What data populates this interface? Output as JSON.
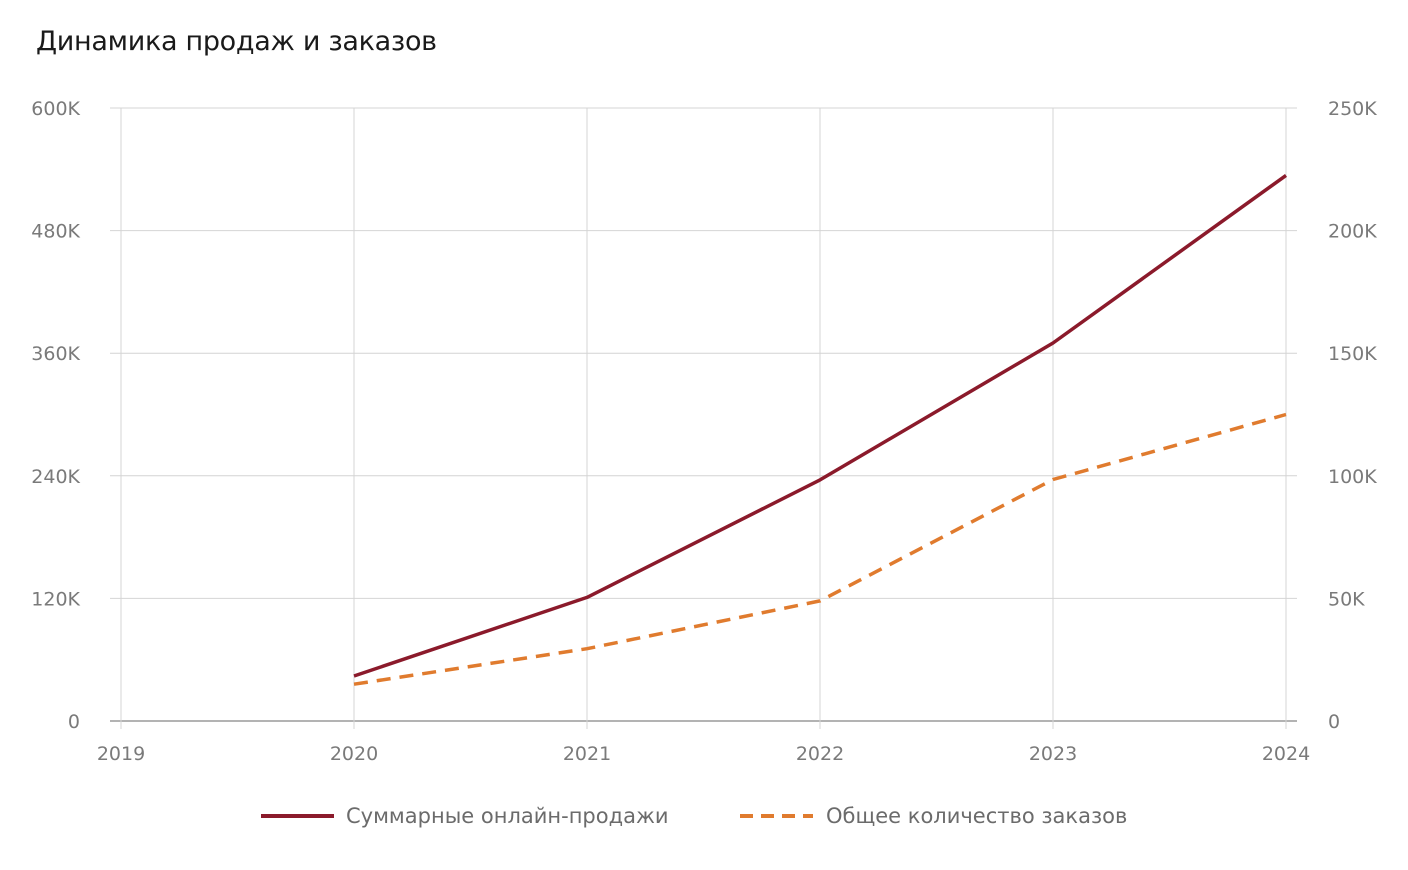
{
  "chart_data": {
    "type": "line",
    "title": "Динамика продаж и заказов",
    "x": [
      "2019",
      "2020",
      "2021",
      "2022",
      "2023",
      "2024"
    ],
    "x_ticks": [
      "2019",
      "2020",
      "2021",
      "2022",
      "2023",
      "2024"
    ],
    "y_left": {
      "lim": [
        0,
        600000
      ],
      "ticks": [
        0,
        120000,
        240000,
        360000,
        480000,
        600000
      ],
      "tick_labels": [
        "0",
        "120K",
        "240K",
        "360K",
        "480K",
        "600K"
      ]
    },
    "y_right": {
      "lim": [
        0,
        250000
      ],
      "ticks": [
        0,
        50000,
        100000,
        150000,
        200000,
        250000
      ],
      "tick_labels": [
        "0",
        "50K",
        "100K",
        "150K",
        "200K",
        "250K"
      ]
    },
    "series": [
      {
        "name": "Суммарные онлайн-продажи",
        "axis": "left",
        "style": "solid",
        "color": "#8b1a2b",
        "x": [
          "2020",
          "2021",
          "2022",
          "2023",
          "2024"
        ],
        "values": [
          44000,
          121000,
          236000,
          370000,
          534000
        ]
      },
      {
        "name": "Общее количество заказов",
        "axis": "right",
        "style": "dashed",
        "color": "#e07b2e",
        "x": [
          "2020",
          "2021",
          "2022",
          "2023",
          "2024"
        ],
        "values": [
          15000,
          29500,
          49000,
          98500,
          125000
        ]
      }
    ],
    "grid": true,
    "legend_position": "bottom"
  }
}
